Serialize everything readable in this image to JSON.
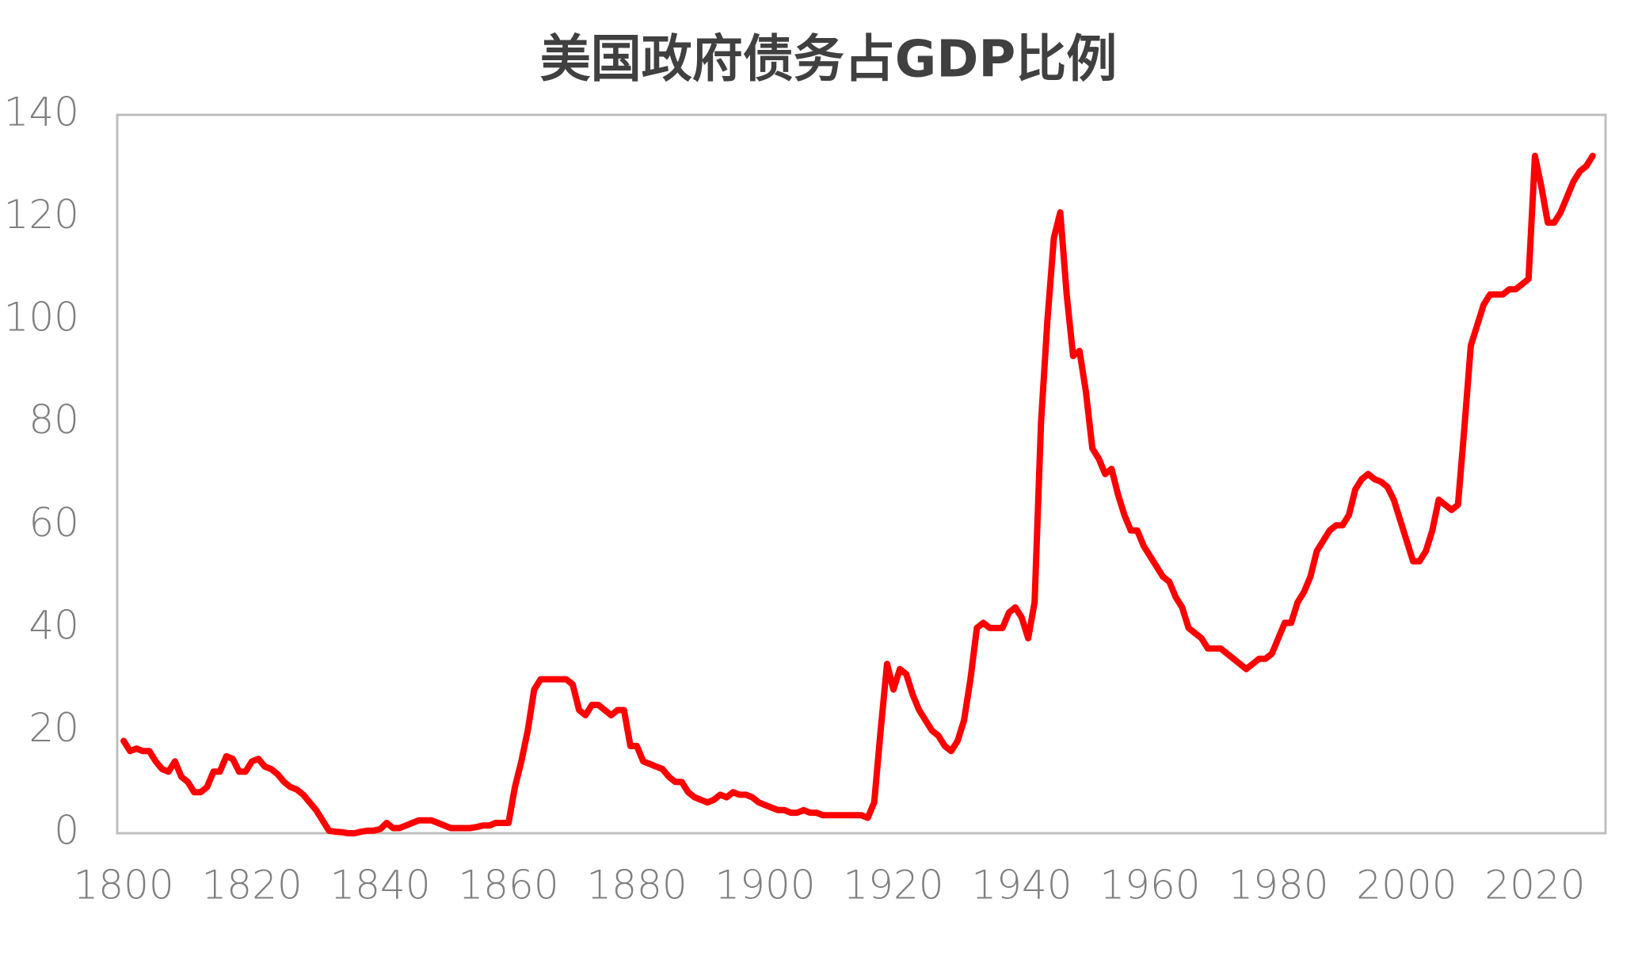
{
  "chart_data": {
    "type": "line",
    "title": "美国政府债务占GDP比例",
    "x": [
      1800,
      1801,
      1802,
      1803,
      1804,
      1805,
      1806,
      1807,
      1808,
      1809,
      1810,
      1811,
      1812,
      1813,
      1814,
      1815,
      1816,
      1817,
      1818,
      1819,
      1820,
      1821,
      1822,
      1823,
      1824,
      1825,
      1826,
      1827,
      1828,
      1829,
      1830,
      1831,
      1832,
      1833,
      1834,
      1835,
      1836,
      1837,
      1838,
      1839,
      1840,
      1841,
      1842,
      1843,
      1844,
      1845,
      1846,
      1847,
      1848,
      1849,
      1850,
      1851,
      1852,
      1853,
      1854,
      1855,
      1856,
      1857,
      1858,
      1859,
      1860,
      1861,
      1862,
      1863,
      1864,
      1865,
      1866,
      1867,
      1868,
      1869,
      1870,
      1871,
      1872,
      1873,
      1874,
      1875,
      1876,
      1877,
      1878,
      1879,
      1880,
      1881,
      1882,
      1883,
      1884,
      1885,
      1886,
      1887,
      1888,
      1889,
      1890,
      1891,
      1892,
      1893,
      1894,
      1895,
      1896,
      1897,
      1898,
      1899,
      1900,
      1901,
      1902,
      1903,
      1904,
      1905,
      1906,
      1907,
      1908,
      1909,
      1910,
      1911,
      1912,
      1913,
      1914,
      1915,
      1916,
      1917,
      1918,
      1919,
      1920,
      1921,
      1922,
      1923,
      1924,
      1925,
      1926,
      1927,
      1928,
      1929,
      1930,
      1931,
      1932,
      1933,
      1934,
      1935,
      1936,
      1937,
      1938,
      1939,
      1940,
      1941,
      1942,
      1943,
      1944,
      1945,
      1946,
      1947,
      1948,
      1949,
      1950,
      1951,
      1952,
      1953,
      1954,
      1955,
      1956,
      1957,
      1958,
      1959,
      1960,
      1961,
      1962,
      1963,
      1964,
      1965,
      1966,
      1967,
      1968,
      1969,
      1970,
      1971,
      1972,
      1973,
      1974,
      1975,
      1976,
      1977,
      1978,
      1979,
      1980,
      1981,
      1982,
      1983,
      1984,
      1985,
      1986,
      1987,
      1988,
      1989,
      1990,
      1991,
      1992,
      1993,
      1994,
      1995,
      1996,
      1997,
      1998,
      1999,
      2000,
      2001,
      2002,
      2003,
      2004,
      2005,
      2006,
      2007,
      2008,
      2009,
      2010,
      2011,
      2012,
      2013,
      2014,
      2015,
      2016,
      2017,
      2018,
      2019,
      2020,
      2021,
      2022,
      2023,
      2024,
      2025,
      2026,
      2027,
      2028,
      2029
    ],
    "series": [
      {
        "color": "#ff0000",
        "values": [
          18,
          16,
          16.5,
          16,
          16,
          14,
          12.5,
          12,
          14,
          11,
          10,
          8,
          8,
          9,
          12,
          12,
          15,
          14.5,
          12,
          12,
          14,
          14.5,
          13,
          12.5,
          11.5,
          10,
          9,
          8.5,
          7.5,
          6,
          4.5,
          2.5,
          0.5,
          0.3,
          0.2,
          0,
          0,
          0.3,
          0.5,
          0.5,
          0.8,
          2,
          1,
          1,
          1.5,
          2,
          2.5,
          2.5,
          2.5,
          2,
          1.5,
          1,
          1,
          1,
          1,
          1.2,
          1.5,
          1.5,
          2,
          2,
          2,
          9,
          14,
          20,
          28,
          30,
          30,
          30,
          30,
          30,
          29,
          24,
          23,
          25,
          25,
          24,
          23,
          24,
          24,
          17,
          17,
          14,
          13.5,
          13,
          12.5,
          11,
          10,
          10,
          8,
          7,
          6.5,
          6,
          6.5,
          7.5,
          7,
          8,
          7.5,
          7.5,
          7,
          6,
          5.5,
          5,
          4.5,
          4.5,
          4,
          4,
          4.5,
          4,
          4,
          3.5,
          3.5,
          3.5,
          3.5,
          3.5,
          3.5,
          3.5,
          3,
          6,
          20,
          33,
          28,
          32,
          31,
          27,
          24,
          22,
          20,
          19,
          17,
          16,
          18,
          22,
          30,
          40,
          41,
          40,
          40,
          40,
          43,
          44,
          42,
          38,
          45,
          80,
          100,
          116,
          121,
          105,
          93,
          94,
          86,
          75,
          73,
          70,
          71,
          66,
          62,
          59,
          59,
          56,
          54,
          52,
          50,
          49,
          46,
          44,
          40,
          39,
          38,
          36,
          36,
          36,
          35,
          34,
          33,
          32,
          33,
          34,
          34,
          35,
          38,
          41,
          41,
          45,
          47,
          50,
          55,
          57,
          59,
          60,
          60,
          62,
          67,
          69,
          70,
          69,
          68.5,
          67.5,
          65,
          61,
          57,
          53,
          53,
          55,
          59,
          65,
          64,
          63,
          64,
          79,
          95,
          99,
          103,
          105,
          105,
          105,
          106,
          106,
          107,
          108,
          132,
          126,
          119,
          119,
          121,
          124,
          127,
          129,
          130,
          132
        ]
      }
    ],
    "xlim": [
      1799,
      2031
    ],
    "xticks": [
      1800,
      1820,
      1840,
      1860,
      1880,
      1900,
      1920,
      1940,
      1960,
      1980,
      2000,
      2020
    ],
    "ylim": [
      0,
      140
    ],
    "yticks": [
      0,
      20,
      40,
      60,
      80,
      100,
      120,
      140
    ]
  }
}
